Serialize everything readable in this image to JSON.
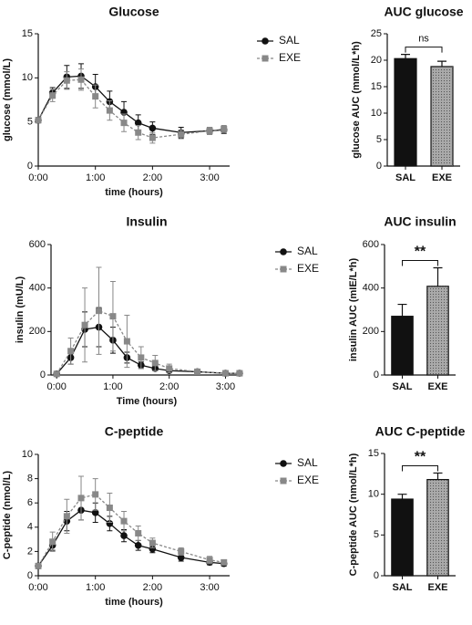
{
  "chart_data": [
    {
      "type": "line",
      "title": "Glucose",
      "xlabel": "time (hours)",
      "ylabel": "glucose (mmol/L)",
      "x": [
        0,
        0.25,
        0.5,
        0.75,
        1,
        1.25,
        1.5,
        1.75,
        2,
        2.5,
        3,
        3.25
      ],
      "xlim": [
        0,
        3.35
      ],
      "xticks": [
        {
          "value": 0,
          "label": "0:00"
        },
        {
          "value": 1,
          "label": "1:00"
        },
        {
          "value": 2,
          "label": "2:00"
        },
        {
          "value": 3,
          "label": "3:00"
        }
      ],
      "ylim": [
        0,
        15
      ],
      "yticks": [
        0,
        5,
        10,
        15
      ],
      "series": [
        {
          "name": "SAL",
          "color": "#111111",
          "marker": "circle",
          "line_style": "solid",
          "values": [
            5.2,
            8.3,
            10.1,
            10.2,
            9.0,
            7.3,
            6.1,
            4.9,
            4.3,
            3.8,
            4.0,
            4.1
          ],
          "errors": [
            0.3,
            0.6,
            1.3,
            1.4,
            1.4,
            1.2,
            1.2,
            0.9,
            0.7,
            0.6,
            0.4,
            0.4
          ]
        },
        {
          "name": "EXE",
          "color": "#888888",
          "marker": "square",
          "line_style": "dashed",
          "values": [
            5.2,
            8.0,
            9.7,
            9.8,
            7.9,
            6.3,
            4.9,
            3.8,
            3.2,
            3.6,
            4.0,
            4.2
          ],
          "errors": [
            0.3,
            0.7,
            1.0,
            1.2,
            1.3,
            1.1,
            1.0,
            0.8,
            0.6,
            0.5,
            0.4,
            0.4
          ]
        }
      ]
    },
    {
      "type": "bar",
      "title": "AUC glucose",
      "ylabel": "glucose AUC (mmol/L*h)",
      "categories": [
        "SAL",
        "EXE"
      ],
      "values": [
        20.3,
        18.8
      ],
      "errors": [
        0.8,
        1.0
      ],
      "colors": [
        "#111111",
        "#aaaaaa"
      ],
      "ylim": [
        0,
        25
      ],
      "yticks": [
        0,
        5,
        10,
        15,
        20,
        25
      ],
      "annotation": "ns"
    },
    {
      "type": "line",
      "title": "Insulin",
      "xlabel": "Time (hours)",
      "ylabel": "insulin (mU/L)",
      "x": [
        0,
        0.25,
        0.5,
        0.75,
        1,
        1.25,
        1.5,
        1.75,
        2,
        2.5,
        3,
        3.25
      ],
      "xlim": [
        -0.1,
        3.3
      ],
      "xticks": [
        {
          "value": 0,
          "label": "0:00"
        },
        {
          "value": 1,
          "label": "1:00"
        },
        {
          "value": 2,
          "label": "2:00"
        },
        {
          "value": 3,
          "label": "3:00"
        }
      ],
      "ylim": [
        0,
        600
      ],
      "yticks": [
        0,
        200,
        400,
        600
      ],
      "series": [
        {
          "name": "SAL",
          "color": "#111111",
          "marker": "circle",
          "line_style": "solid",
          "values": [
            5,
            80,
            210,
            220,
            160,
            80,
            45,
            30,
            20,
            15,
            8,
            8
          ],
          "errors": [
            5,
            30,
            80,
            90,
            60,
            25,
            15,
            10,
            8,
            5,
            5,
            5
          ]
        },
        {
          "name": "EXE",
          "color": "#888888",
          "marker": "square",
          "line_style": "dashed",
          "values": [
            5,
            110,
            230,
            295,
            270,
            155,
            80,
            55,
            30,
            15,
            8,
            8
          ],
          "errors": [
            5,
            60,
            170,
            200,
            160,
            120,
            50,
            35,
            20,
            10,
            5,
            5
          ]
        }
      ]
    },
    {
      "type": "bar",
      "title": "AUC insulin",
      "ylabel": "insulin AUC (mIE/L*h)",
      "categories": [
        "SAL",
        "EXE"
      ],
      "values": [
        270,
        408
      ],
      "errors": [
        55,
        85
      ],
      "colors": [
        "#111111",
        "#aaaaaa"
      ],
      "ylim": [
        0,
        600
      ],
      "yticks": [
        0,
        200,
        400,
        600
      ],
      "annotation": "**"
    },
    {
      "type": "line",
      "title": "C-peptide",
      "xlabel": "time (hours)",
      "ylabel": "C-peptide (nmol/L)",
      "x": [
        0,
        0.25,
        0.5,
        0.75,
        1,
        1.25,
        1.5,
        1.75,
        2,
        2.5,
        3,
        3.25
      ],
      "xlim": [
        0,
        3.35
      ],
      "xticks": [
        {
          "value": 0,
          "label": "0:00"
        },
        {
          "value": 1,
          "label": "1:00"
        },
        {
          "value": 2,
          "label": "2:00"
        },
        {
          "value": 3,
          "label": "3:00"
        }
      ],
      "ylim": [
        0,
        10
      ],
      "yticks": [
        0,
        2,
        4,
        6,
        8,
        10
      ],
      "series": [
        {
          "name": "SAL",
          "color": "#111111",
          "marker": "circle",
          "line_style": "solid",
          "values": [
            0.8,
            2.5,
            4.5,
            5.4,
            5.2,
            4.3,
            3.3,
            2.5,
            2.2,
            1.5,
            1.1,
            1.0
          ],
          "errors": [
            0.2,
            0.4,
            0.8,
            0.8,
            0.8,
            0.6,
            0.5,
            0.4,
            0.3,
            0.3,
            0.2,
            0.2
          ]
        },
        {
          "name": "EXE",
          "color": "#888888",
          "marker": "square",
          "line_style": "dashed",
          "values": [
            0.8,
            2.8,
            4.9,
            6.4,
            6.7,
            5.6,
            4.5,
            3.5,
            2.7,
            2.0,
            1.3,
            1.1
          ],
          "errors": [
            0.2,
            0.8,
            1.4,
            1.8,
            1.3,
            1.2,
            0.8,
            0.6,
            0.4,
            0.3,
            0.3,
            0.2
          ]
        }
      ]
    },
    {
      "type": "bar",
      "title": "AUC C-peptide",
      "ylabel": "C-peptide AUC (nmol/L*h)",
      "categories": [
        "SAL",
        "EXE"
      ],
      "values": [
        9.4,
        11.8
      ],
      "errors": [
        0.6,
        0.8
      ],
      "colors": [
        "#111111",
        "#aaaaaa"
      ],
      "ylim": [
        0,
        15
      ],
      "yticks": [
        0,
        5,
        10,
        15
      ],
      "annotation": "**"
    }
  ]
}
